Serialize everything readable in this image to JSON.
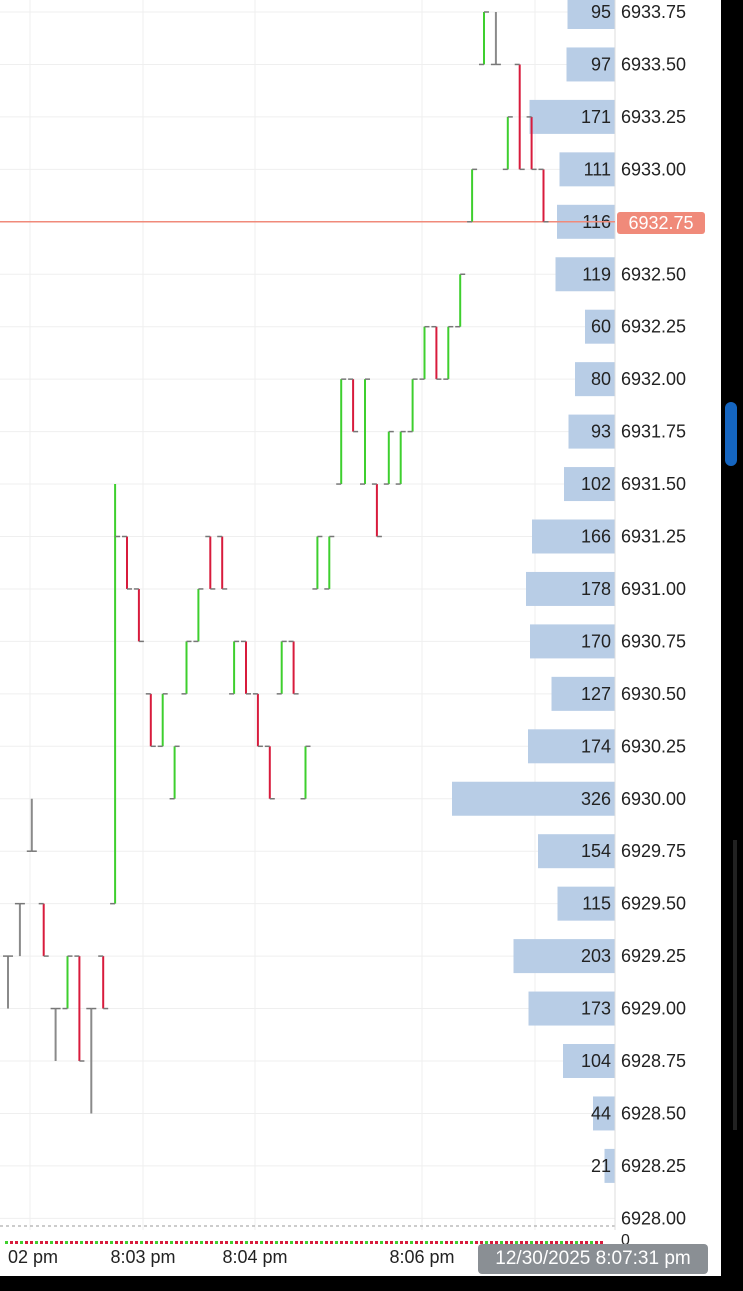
{
  "chart_data": {
    "type": "candlestick_with_volume_profile",
    "price_axis": {
      "ticks": [
        "6933.75",
        "6933.50",
        "6933.25",
        "6933.00",
        "6932.75",
        "6932.50",
        "6932.25",
        "6932.00",
        "6931.75",
        "6931.50",
        "6931.25",
        "6931.00",
        "6930.75",
        "6930.50",
        "6930.25",
        "6930.00",
        "6929.75",
        "6929.50",
        "6929.25",
        "6929.00",
        "6928.75",
        "6928.50",
        "6928.25",
        "6928.00"
      ],
      "range": [
        6928.0,
        6933.75
      ]
    },
    "volume_profile": {
      "prices": [
        6933.75,
        6933.5,
        6933.25,
        6933.0,
        6932.75,
        6932.5,
        6932.25,
        6932.0,
        6931.75,
        6931.5,
        6931.25,
        6931.0,
        6930.75,
        6930.5,
        6930.25,
        6930.0,
        6929.75,
        6929.5,
        6929.25,
        6929.0,
        6928.75,
        6928.5,
        6928.25
      ],
      "volumes": [
        95,
        97,
        171,
        111,
        116,
        119,
        60,
        80,
        93,
        102,
        166,
        178,
        170,
        127,
        174,
        326,
        154,
        115,
        203,
        173,
        104,
        44,
        21
      ],
      "labels": [
        "95",
        "97",
        "171",
        "111",
        "116",
        "119",
        "60",
        "80",
        "93",
        "102",
        "166",
        "178",
        "170",
        "127",
        "174",
        "326",
        "154",
        "115",
        "203",
        "173",
        "104",
        "44",
        "21"
      ]
    },
    "current_price": "6932.75",
    "x_axis_labels": [
      "02 pm",
      "8:03 pm",
      "8:04 pm",
      "8:06 pm"
    ],
    "zero_label": "0",
    "timestamp": "12/30/2025 8:07:31 pm",
    "bars": [
      {
        "o": 6929.25,
        "h": 6929.25,
        "l": 6929.0,
        "c": 6929.25
      },
      {
        "o": 6929.5,
        "h": 6929.5,
        "l": 6929.25,
        "c": 6929.5
      },
      {
        "o": 6929.75,
        "h": 6930.0,
        "l": 6929.75,
        "c": 6929.75
      },
      {
        "o": 6929.5,
        "h": 6929.5,
        "l": 6929.25,
        "c": 6929.25
      },
      {
        "o": 6929.0,
        "h": 6929.0,
        "l": 6928.75,
        "c": 6929.0
      },
      {
        "o": 6929.0,
        "h": 6929.25,
        "l": 6929.0,
        "c": 6929.25
      },
      {
        "o": 6929.25,
        "h": 6929.25,
        "l": 6928.75,
        "c": 6928.75
      },
      {
        "o": 6929.0,
        "h": 6929.0,
        "l": 6928.5,
        "c": 6929.0
      },
      {
        "o": 6929.25,
        "h": 6929.25,
        "l": 6929.0,
        "c": 6929.0
      },
      {
        "o": 6929.5,
        "h": 6931.5,
        "l": 6929.5,
        "c": 6931.25
      },
      {
        "o": 6931.25,
        "h": 6931.25,
        "l": 6931.0,
        "c": 6931.0
      },
      {
        "o": 6931.0,
        "h": 6931.0,
        "l": 6930.75,
        "c": 6930.75
      },
      {
        "o": 6930.5,
        "h": 6930.5,
        "l": 6930.25,
        "c": 6930.25
      },
      {
        "o": 6930.25,
        "h": 6930.5,
        "l": 6930.25,
        "c": 6930.5
      },
      {
        "o": 6930.0,
        "h": 6930.25,
        "l": 6930.0,
        "c": 6930.25
      },
      {
        "o": 6930.5,
        "h": 6930.75,
        "l": 6930.5,
        "c": 6930.75
      },
      {
        "o": 6930.75,
        "h": 6931.0,
        "l": 6930.75,
        "c": 6931.0
      },
      {
        "o": 6931.25,
        "h": 6931.25,
        "l": 6931.0,
        "c": 6931.0
      },
      {
        "o": 6931.25,
        "h": 6931.25,
        "l": 6931.0,
        "c": 6931.0
      },
      {
        "o": 6930.5,
        "h": 6930.75,
        "l": 6930.5,
        "c": 6930.75
      },
      {
        "o": 6930.75,
        "h": 6930.75,
        "l": 6930.5,
        "c": 6930.5
      },
      {
        "o": 6930.5,
        "h": 6930.5,
        "l": 6930.25,
        "c": 6930.25
      },
      {
        "o": 6930.25,
        "h": 6930.25,
        "l": 6930.0,
        "c": 6930.0
      },
      {
        "o": 6930.5,
        "h": 6930.75,
        "l": 6930.5,
        "c": 6930.75
      },
      {
        "o": 6930.75,
        "h": 6930.75,
        "l": 6930.5,
        "c": 6930.5
      },
      {
        "o": 6930.0,
        "h": 6930.25,
        "l": 6930.0,
        "c": 6930.25
      },
      {
        "o": 6931.0,
        "h": 6931.25,
        "l": 6931.0,
        "c": 6931.25
      },
      {
        "o": 6931.0,
        "h": 6931.25,
        "l": 6931.0,
        "c": 6931.25
      },
      {
        "o": 6931.5,
        "h": 6932.0,
        "l": 6931.5,
        "c": 6932.0
      },
      {
        "o": 6932.0,
        "h": 6932.0,
        "l": 6931.75,
        "c": 6931.75
      },
      {
        "o": 6931.5,
        "h": 6932.0,
        "l": 6931.5,
        "c": 6932.0
      },
      {
        "o": 6931.5,
        "h": 6931.5,
        "l": 6931.25,
        "c": 6931.25
      },
      {
        "o": 6931.5,
        "h": 6931.75,
        "l": 6931.5,
        "c": 6931.75
      },
      {
        "o": 6931.5,
        "h": 6931.75,
        "l": 6931.5,
        "c": 6931.75
      },
      {
        "o": 6931.75,
        "h": 6932.0,
        "l": 6931.75,
        "c": 6932.0
      },
      {
        "o": 6932.0,
        "h": 6932.25,
        "l": 6932.0,
        "c": 6932.25
      },
      {
        "o": 6932.25,
        "h": 6932.25,
        "l": 6932.0,
        "c": 6932.0
      },
      {
        "o": 6932.0,
        "h": 6932.25,
        "l": 6932.0,
        "c": 6932.25
      },
      {
        "o": 6932.25,
        "h": 6932.5,
        "l": 6932.25,
        "c": 6932.5
      },
      {
        "o": 6932.75,
        "h": 6933.0,
        "l": 6932.75,
        "c": 6933.0
      },
      {
        "o": 6933.5,
        "h": 6933.75,
        "l": 6933.5,
        "c": 6933.75
      },
      {
        "o": 6933.5,
        "h": 6933.75,
        "l": 6933.5,
        "c": 6933.5
      },
      {
        "o": 6933.0,
        "h": 6933.25,
        "l": 6933.0,
        "c": 6933.25
      },
      {
        "o": 6933.5,
        "h": 6933.5,
        "l": 6933.0,
        "c": 6933.0
      },
      {
        "o": 6933.25,
        "h": 6933.25,
        "l": 6933.0,
        "c": 6933.0
      },
      {
        "o": 6933.0,
        "h": 6933.0,
        "l": 6932.75,
        "c": 6932.75
      }
    ],
    "colors": {
      "up": "#3ecf2e",
      "down": "#d81b3c",
      "flat": "#8a8a8a",
      "volume": "#b8cde6",
      "current_price_line": "#f08a7a",
      "grid": "#efefef"
    }
  }
}
